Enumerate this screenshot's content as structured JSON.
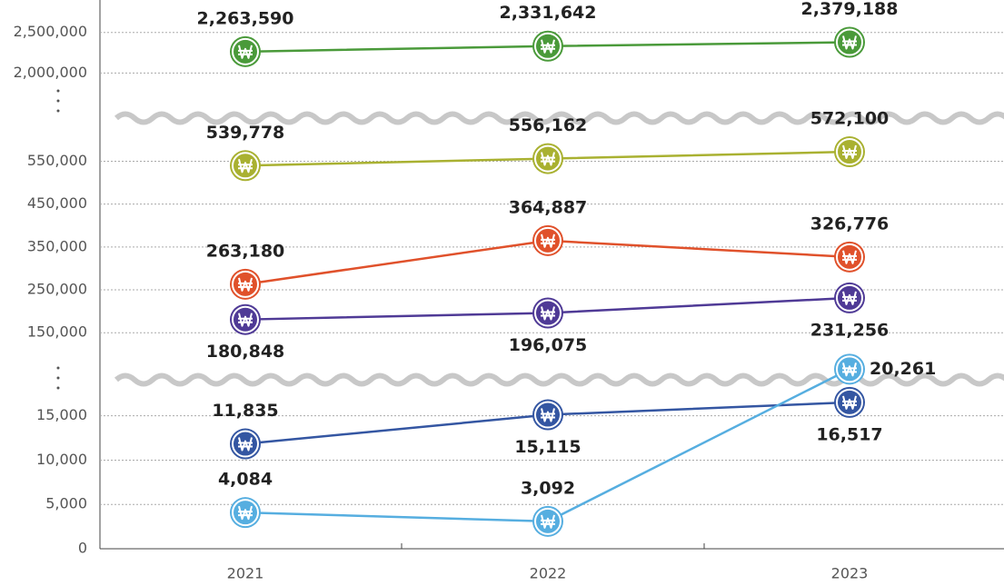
{
  "chart_data": {
    "type": "line",
    "categories": [
      "2021",
      "2022",
      "2023"
    ],
    "panels": [
      {
        "ylim": [
          1500000,
          2900000
        ],
        "yticks": [
          {
            "value": 2000000,
            "label": "2,000,000"
          },
          {
            "value": 2500000,
            "label": "2,500,000"
          }
        ]
      },
      {
        "ylim": [
          70000,
          640000
        ],
        "yticks": [
          {
            "value": 150000,
            "label": "150,000"
          },
          {
            "value": 250000,
            "label": "250,000"
          },
          {
            "value": 350000,
            "label": "350,000"
          },
          {
            "value": 450000,
            "label": "450,000"
          },
          {
            "value": 550000,
            "label": "550,000"
          }
        ]
      },
      {
        "ylim": [
          0,
          20500
        ],
        "yticks": [
          0,
          {
            "value": 5000,
            "label": "5,000"
          },
          {
            "value": 10000,
            "label": "10,000"
          },
          {
            "value": 15000,
            "label": "15,000"
          }
        ]
      }
    ],
    "grid": true,
    "series": [
      {
        "color": "#4a9a3a",
        "axis": 0,
        "values": [
          2263590,
          2331642,
          2379188
        ],
        "value_labels": [
          "2,263,590",
          "2,331,642",
          "2,379,188"
        ]
      },
      {
        "color": "#a9b131",
        "axis": 1,
        "values": [
          539778,
          556162,
          572100
        ],
        "value_labels": [
          "539,778",
          "556,162",
          "572,100"
        ]
      },
      {
        "color": "#e0512b",
        "axis": 1,
        "values": [
          263180,
          364887,
          326776
        ],
        "value_labels": [
          "263,180",
          "364,887",
          "326,776"
        ]
      },
      {
        "color": "#4f3a96",
        "axis": 1,
        "values": [
          180848,
          196075,
          231256
        ],
        "value_labels": [
          "180,848",
          "196,075",
          "231,256"
        ]
      },
      {
        "color": "#3456a2",
        "axis": 2,
        "values": [
          11835,
          15115,
          16517
        ],
        "value_labels": [
          "11,835",
          "15,115",
          "16,517"
        ]
      },
      {
        "color": "#56aee0",
        "axis": 2,
        "values": [
          4084,
          3092,
          20261
        ],
        "value_labels": [
          "4,084",
          "3,092",
          "20,261"
        ]
      }
    ]
  }
}
